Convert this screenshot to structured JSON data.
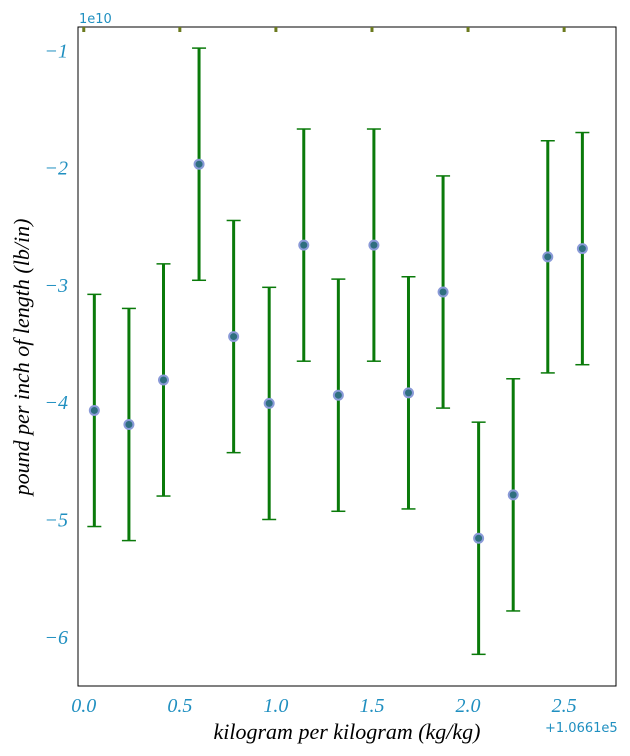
{
  "chart_data": {
    "type": "scatter",
    "xlabel": "kilogram per kilogram (kg/kg)",
    "ylabel": "pound per inch of length (lb/in)",
    "x_offset_label": "+1.0661e5",
    "y_scale_label": "1e10",
    "x_ticks": [
      "0.0",
      "0.5",
      "1.0",
      "1.5",
      "2.0",
      "2.5"
    ],
    "y_ticks": [
      "−1",
      "−2",
      "−3",
      "−4",
      "−5",
      "−6"
    ],
    "xlim": [
      106609.97,
      106612.77
    ],
    "ylim": [
      -64200000000.0,
      -8000000000.0
    ],
    "grid": false,
    "colors": {
      "errorbar": "#0a7a0a",
      "marker_fill": "#2f6f7f",
      "marker_edge": "#8a9ad8",
      "tick_text": "#1f8fc0",
      "top_ticks": "#6b7a1e"
    },
    "series": [
      {
        "x": [
          106610.055,
          106610.235,
          106610.415,
          106610.6,
          106610.78,
          106610.965,
          106611.145,
          106611.325,
          106611.51,
          106611.69,
          106611.87,
          106612.055,
          106612.235,
          106612.415,
          106612.595
        ],
        "y": [
          -40700000000.0,
          -41900000000.0,
          -38100000000.0,
          -19700000000.0,
          -34400000000.0,
          -40100000000.0,
          -26600000000.0,
          -39400000000.0,
          -26600000000.0,
          -39200000000.0,
          -30600000000.0,
          -51600000000.0,
          -47900000000.0,
          -27600000000.0,
          -26900000000.0
        ],
        "yerr": [
          9900000000.0,
          9900000000.0,
          9900000000.0,
          9900000000.0,
          9900000000.0,
          9900000000.0,
          9900000000.0,
          9900000000.0,
          9900000000.0,
          9900000000.0,
          9900000000.0,
          9900000000.0,
          9900000000.0,
          9900000000.0,
          9900000000.0
        ]
      }
    ]
  }
}
